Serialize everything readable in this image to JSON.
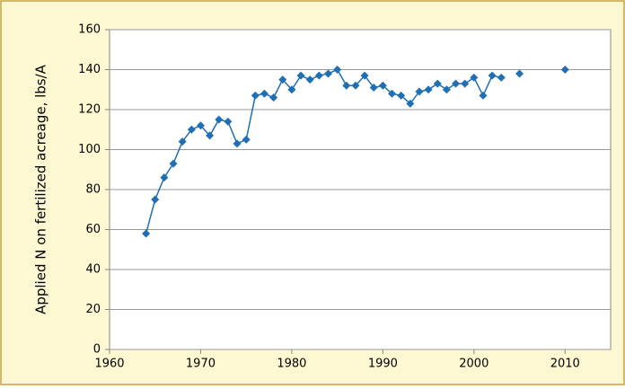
{
  "chart_data": {
    "type": "line",
    "y_label": "Applied N on fertilized acreage, lbs/A",
    "x": [
      1964,
      1965,
      1966,
      1967,
      1968,
      1969,
      1970,
      1971,
      1972,
      1973,
      1974,
      1975,
      1976,
      1977,
      1978,
      1979,
      1980,
      1981,
      1982,
      1983,
      1984,
      1985,
      1986,
      1987,
      1988,
      1989,
      1990,
      1991,
      1992,
      1993,
      1994,
      1995,
      1996,
      1997,
      1998,
      1999,
      2000,
      2001,
      2002,
      2003,
      2004,
      2005,
      2006,
      2007,
      2008,
      2009,
      2010
    ],
    "values": [
      58,
      75,
      86,
      93,
      104,
      110,
      112,
      107,
      115,
      114,
      103,
      105,
      127,
      128,
      126,
      135,
      130,
      137,
      135,
      137,
      138,
      140,
      132,
      132,
      137,
      131,
      132,
      128,
      127,
      123,
      129,
      130,
      133,
      130,
      133,
      133,
      136,
      127,
      137,
      136,
      null,
      138,
      null,
      null,
      null,
      null,
      140
    ],
    "color": "#1f6fb4",
    "xlim": [
      1960,
      2015
    ],
    "xticks": [
      1960,
      1970,
      1980,
      1990,
      2000,
      2010
    ],
    "ylim": [
      0,
      160
    ],
    "yticks": [
      0,
      20,
      40,
      60,
      80,
      100,
      120,
      140,
      160
    ],
    "grid": true
  }
}
